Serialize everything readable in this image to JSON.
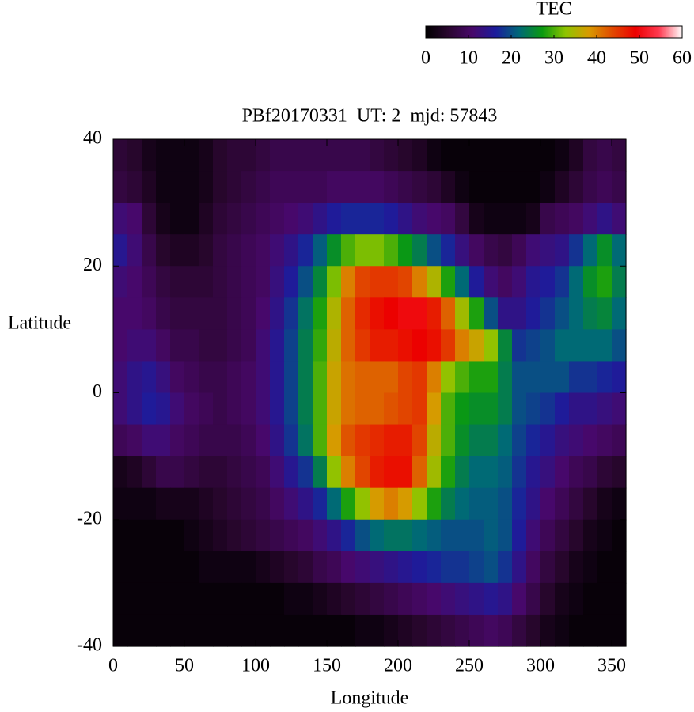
{
  "chart_data": {
    "type": "heatmap",
    "title": "PBf20170331  UT: 2  mjd: 57843",
    "xlabel": "Longitude",
    "ylabel": "Latitude",
    "x": [
      5,
      15,
      25,
      35,
      45,
      55,
      65,
      75,
      85,
      95,
      105,
      115,
      125,
      135,
      145,
      155,
      165,
      175,
      185,
      195,
      205,
      215,
      225,
      235,
      245,
      255,
      265,
      275,
      285,
      295,
      305,
      315,
      325,
      335,
      345,
      355
    ],
    "y": [
      37.5,
      32.5,
      27.5,
      22.5,
      17.5,
      12.5,
      7.5,
      2.5,
      -2.5,
      -7.5,
      -12.5,
      -17.5,
      -22.5,
      -27.5,
      -32.5,
      -37.5
    ],
    "values": [
      [
        6,
        5,
        3,
        2,
        2,
        2,
        3,
        5,
        6,
        6,
        7,
        8,
        8,
        8,
        8,
        8,
        8,
        8,
        7,
        6,
        5,
        4,
        2,
        1,
        1,
        1,
        1,
        1,
        1,
        1,
        1,
        2,
        4,
        7,
        8,
        7
      ],
      [
        7,
        6,
        4,
        2,
        2,
        2,
        3,
        5,
        6,
        7,
        8,
        9,
        9,
        9,
        9,
        10,
        10,
        10,
        10,
        9,
        8,
        7,
        6,
        4,
        2,
        1,
        1,
        1,
        1,
        1,
        2,
        4,
        6,
        8,
        9,
        8
      ],
      [
        12,
        11,
        6,
        3,
        2,
        2,
        4,
        6,
        7,
        8,
        9,
        10,
        11,
        12,
        14,
        16,
        17,
        17,
        17,
        16,
        14,
        12,
        11,
        10,
        7,
        3,
        2,
        2,
        2,
        3,
        8,
        9,
        10,
        12,
        14,
        12
      ],
      [
        15,
        12,
        8,
        5,
        4,
        4,
        5,
        7,
        8,
        9,
        10,
        12,
        14,
        17,
        21,
        26,
        30,
        32,
        32,
        30,
        27,
        24,
        20,
        17,
        13,
        10,
        8,
        7,
        9,
        12,
        13,
        14,
        18,
        22,
        26,
        22
      ],
      [
        12,
        11,
        9,
        7,
        6,
        6,
        6,
        7,
        8,
        9,
        10,
        13,
        16,
        20,
        25,
        32,
        40,
        44,
        45,
        45,
        44,
        40,
        35,
        28,
        22,
        16,
        12,
        10,
        12,
        15,
        16,
        18,
        22,
        26,
        28,
        24
      ],
      [
        11,
        11,
        10,
        8,
        7,
        7,
        7,
        7,
        8,
        9,
        11,
        14,
        18,
        23,
        28,
        35,
        42,
        46,
        48,
        49,
        50,
        50,
        47,
        42,
        34,
        28,
        20,
        14,
        14,
        16,
        18,
        20,
        22,
        24,
        25,
        22
      ],
      [
        11,
        12,
        12,
        10,
        8,
        8,
        7,
        7,
        8,
        9,
        12,
        15,
        19,
        24,
        29,
        36,
        42,
        45,
        47,
        47,
        48,
        49,
        48,
        45,
        40,
        37,
        33,
        25,
        18,
        19,
        20,
        22,
        22,
        22,
        22,
        20
      ],
      [
        12,
        14,
        15,
        13,
        10,
        9,
        8,
        8,
        9,
        10,
        12,
        15,
        19,
        24,
        30,
        37,
        41,
        42,
        42,
        42,
        44,
        45,
        40,
        33,
        30,
        28,
        28,
        24,
        20,
        20,
        20,
        20,
        18,
        18,
        17,
        16
      ],
      [
        12,
        14,
        16,
        15,
        12,
        10,
        9,
        8,
        9,
        10,
        12,
        15,
        19,
        24,
        30,
        37,
        41,
        42,
        42,
        43,
        44,
        45,
        38,
        30,
        27,
        26,
        26,
        24,
        20,
        19,
        18,
        16,
        14,
        14,
        13,
        12
      ],
      [
        9,
        10,
        12,
        12,
        10,
        9,
        8,
        8,
        8,
        9,
        11,
        14,
        18,
        23,
        30,
        38,
        43,
        45,
        46,
        47,
        47,
        44,
        36,
        30,
        26,
        24,
        24,
        22,
        19,
        17,
        15,
        13,
        12,
        11,
        10,
        9
      ],
      [
        3,
        4,
        6,
        8,
        8,
        7,
        6,
        6,
        7,
        8,
        9,
        12,
        15,
        18,
        24,
        33,
        40,
        44,
        47,
        48,
        48,
        42,
        34,
        28,
        24,
        22,
        22,
        21,
        18,
        15,
        13,
        11,
        9,
        8,
        6,
        5
      ],
      [
        2,
        2,
        2,
        3,
        3,
        3,
        4,
        5,
        6,
        7,
        8,
        10,
        12,
        14,
        17,
        22,
        28,
        33,
        38,
        40,
        38,
        33,
        28,
        24,
        22,
        21,
        21,
        20,
        17,
        14,
        11,
        9,
        7,
        5,
        3,
        2
      ],
      [
        1,
        1,
        1,
        1,
        1,
        2,
        3,
        4,
        5,
        6,
        7,
        8,
        9,
        10,
        12,
        14,
        17,
        20,
        22,
        23,
        23,
        22,
        21,
        20,
        20,
        20,
        21,
        20,
        16,
        12,
        9,
        7,
        5,
        3,
        2,
        1
      ],
      [
        1,
        1,
        1,
        1,
        1,
        1,
        2,
        2,
        2,
        2,
        3,
        4,
        5,
        6,
        8,
        9,
        11,
        12,
        13,
        14,
        15,
        16,
        17,
        18,
        18,
        19,
        20,
        18,
        14,
        10,
        7,
        5,
        3,
        2,
        1,
        1
      ],
      [
        1,
        1,
        1,
        1,
        1,
        1,
        1,
        1,
        1,
        1,
        1,
        1,
        2,
        2,
        3,
        4,
        5,
        6,
        7,
        8,
        9,
        10,
        11,
        12,
        13,
        14,
        15,
        14,
        11,
        8,
        5,
        3,
        2,
        1,
        1,
        1
      ],
      [
        1,
        1,
        1,
        1,
        1,
        1,
        1,
        1,
        1,
        1,
        1,
        1,
        1,
        1,
        1,
        1,
        1,
        2,
        2,
        3,
        4,
        5,
        6,
        7,
        8,
        9,
        10,
        9,
        7,
        5,
        3,
        2,
        1,
        1,
        1,
        1
      ]
    ],
    "xlim": [
      0,
      360
    ],
    "xticks": [
      0,
      50,
      100,
      150,
      200,
      250,
      300,
      350
    ],
    "ylim": [
      -40,
      40
    ],
    "yticks": [
      -40,
      -20,
      0,
      20,
      40
    ],
    "colorbar": {
      "label": "TEC",
      "lim": [
        0,
        60
      ],
      "ticks": [
        0,
        10,
        20,
        30,
        40,
        50,
        60
      ],
      "colors": [
        "#000000",
        "#2a0630",
        "#48086a",
        "#1c1c9c",
        "#006878",
        "#0a9a10",
        "#8ec400",
        "#d89a00",
        "#e04a00",
        "#ec0000",
        "#ff3a50",
        "#ffffff"
      ]
    }
  }
}
